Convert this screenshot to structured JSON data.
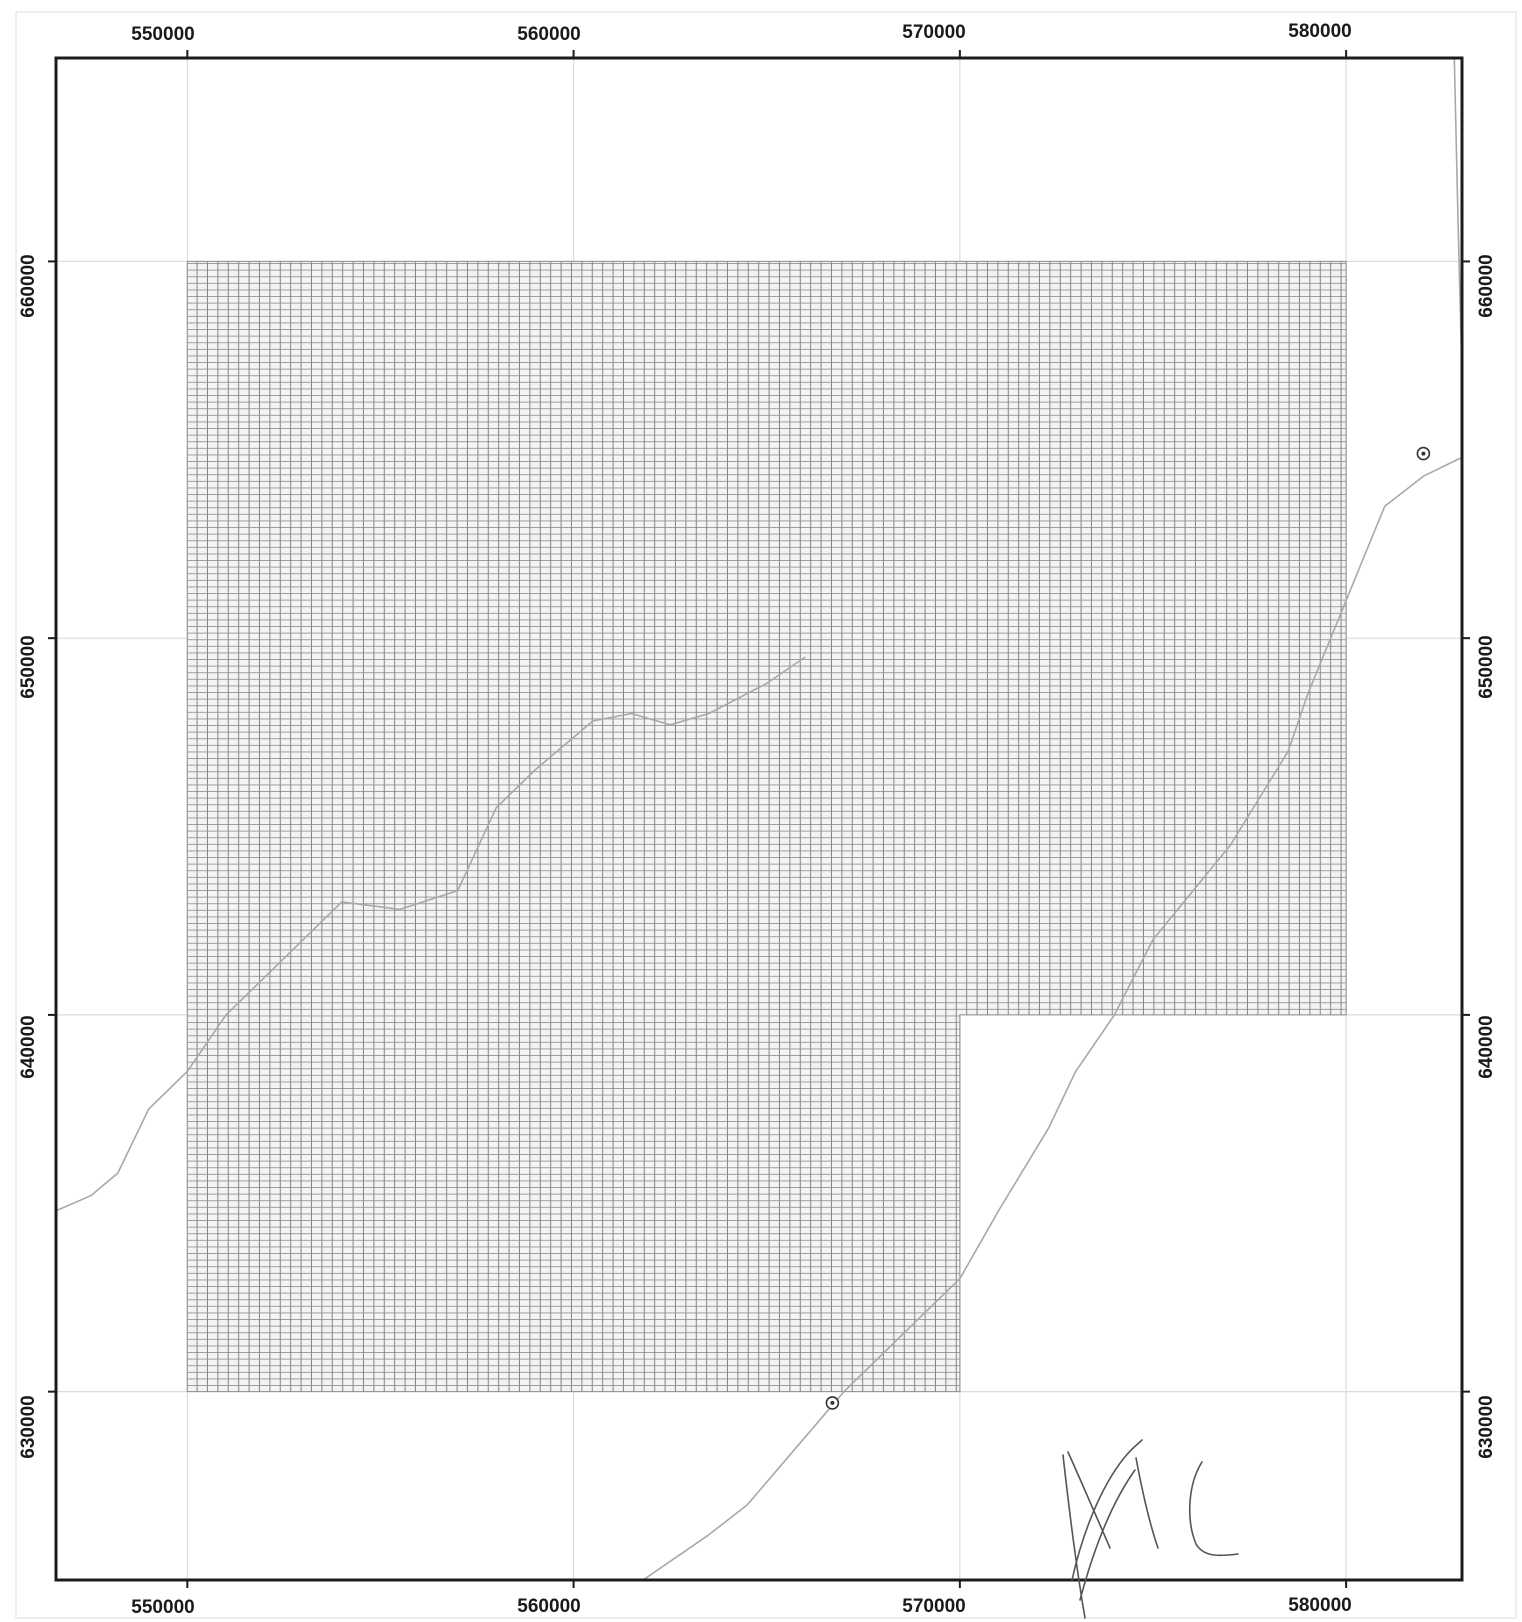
{
  "map": {
    "x_axis": {
      "min": 546600,
      "max": 583000,
      "ticks": [
        550000,
        560000,
        570000,
        580000
      ],
      "tick_labels": [
        "550000",
        "560000",
        "570000",
        "580000"
      ]
    },
    "y_axis": {
      "min": 625000,
      "max": 665400,
      "ticks": [
        660000,
        650000,
        640000,
        630000
      ],
      "tick_labels": [
        "660000",
        "650000",
        "640000",
        "630000"
      ]
    },
    "grid": true,
    "hatched_area": {
      "label": "",
      "polygon": [
        [
          550000,
          660000
        ],
        [
          580000,
          660000
        ],
        [
          580000,
          640000
        ],
        [
          570000,
          640000
        ],
        [
          570000,
          630000
        ],
        [
          550000,
          630000
        ]
      ]
    },
    "rivers": [
      {
        "name": "",
        "points": [
          [
            546600,
            634800
          ],
          [
            547500,
            635200
          ],
          [
            548200,
            635800
          ],
          [
            549000,
            637500
          ],
          [
            550000,
            638500
          ],
          [
            551000,
            640000
          ],
          [
            552500,
            641500
          ],
          [
            554000,
            643000
          ],
          [
            555500,
            642800
          ],
          [
            557000,
            643300
          ],
          [
            558000,
            645500
          ],
          [
            559000,
            646500
          ],
          [
            560500,
            647800
          ],
          [
            561500,
            648000
          ],
          [
            562500,
            647700
          ],
          [
            563500,
            648000
          ],
          [
            565000,
            648800
          ],
          [
            566000,
            649500
          ]
        ]
      },
      {
        "name": "",
        "points": [
          [
            561800,
            625000
          ],
          [
            563500,
            626200
          ],
          [
            564500,
            627000
          ],
          [
            566000,
            628800
          ],
          [
            567000,
            630000
          ],
          [
            568500,
            631500
          ],
          [
            570000,
            633000
          ],
          [
            571000,
            634800
          ],
          [
            572300,
            637000
          ],
          [
            573000,
            638500
          ],
          [
            574000,
            640000
          ],
          [
            575000,
            642000
          ],
          [
            577000,
            644500
          ],
          [
            578500,
            647000
          ],
          [
            579000,
            648500
          ],
          [
            580000,
            651000
          ],
          [
            581000,
            653500
          ],
          [
            582000,
            654300
          ],
          [
            583000,
            654800
          ]
        ]
      },
      {
        "name": "",
        "points": [
          [
            582800,
            665400
          ],
          [
            582900,
            661000
          ],
          [
            583000,
            657000
          ]
        ]
      }
    ],
    "markers": [
      {
        "name": "point-symbol",
        "x": 566700,
        "y": 629700
      },
      {
        "name": "point-symbol",
        "x": 582000,
        "y": 654900
      }
    ],
    "handwritten_mark": "signature"
  }
}
